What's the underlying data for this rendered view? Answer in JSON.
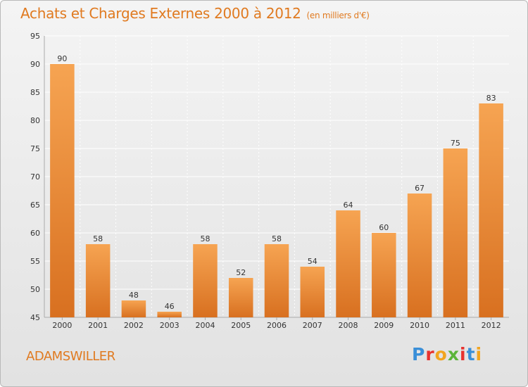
{
  "header": {
    "title": "Achats et Charges Externes 2000 à 2012",
    "subtitle": "(en milliers d'€)"
  },
  "footer": {
    "city": "ADAMSWILLER",
    "logo_letters": [
      "P",
      "r",
      "o",
      "x",
      "i",
      "t",
      "i"
    ]
  },
  "colors": {
    "title": "#e07a20",
    "bar_top": "#f6a452",
    "bar_bottom": "#d87020",
    "grid": "#ffffff",
    "logo": [
      "#3a8fd8",
      "#e8322f",
      "#f2a51f",
      "#5bb43a",
      "#e8322f",
      "#3a8fd8",
      "#f2a51f"
    ]
  },
  "chart_data": {
    "type": "bar",
    "title": "Achats et Charges Externes 2000 à 2012",
    "subtitle": "(en milliers d'€)",
    "categories": [
      "2000",
      "2001",
      "2002",
      "2003",
      "2004",
      "2005",
      "2006",
      "2007",
      "2008",
      "2009",
      "2010",
      "2011",
      "2012"
    ],
    "values": [
      90,
      58,
      48,
      46,
      58,
      52,
      58,
      54,
      64,
      60,
      67,
      75,
      83
    ],
    "ylim": [
      45,
      95
    ],
    "yticks": [
      45,
      50,
      55,
      60,
      65,
      70,
      75,
      80,
      85,
      90,
      95
    ],
    "xlabel": "",
    "ylabel": "",
    "grid": true,
    "data_labels": true
  }
}
